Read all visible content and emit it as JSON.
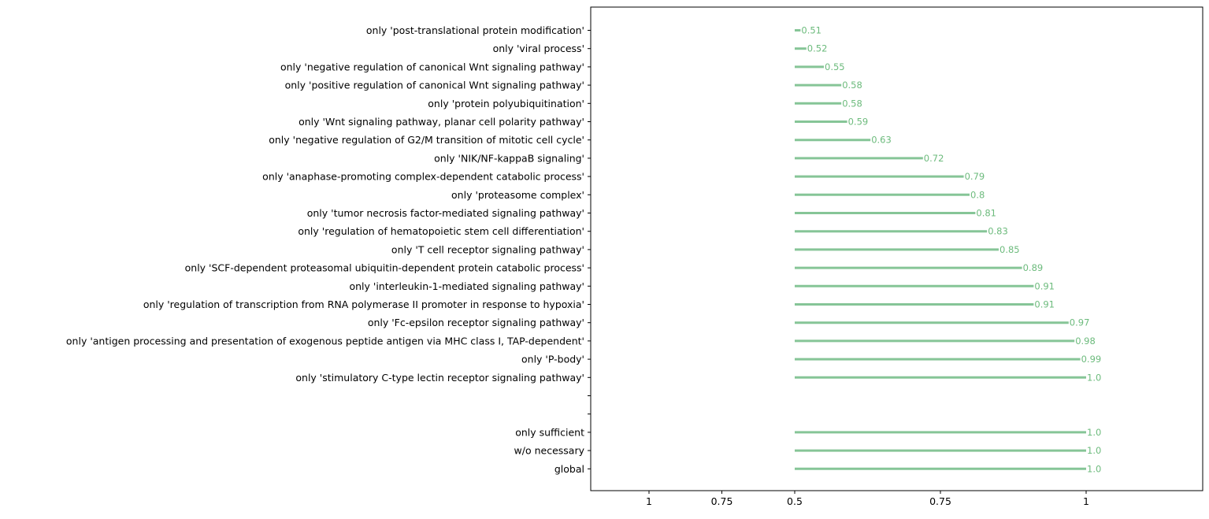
{
  "chart_data": {
    "type": "bar",
    "orientation": "horizontal",
    "series_color": "#86c597",
    "label_color": "#6dbb7d",
    "xlim": [
      0.15,
      1.2
    ],
    "x_tick_labels": [
      "1",
      "0.75",
      "0.5",
      "0.75",
      "1"
    ],
    "bar_start": 0.5,
    "grid": false,
    "categories": [
      "only 'post-translational protein modification'",
      "only 'viral process'",
      "only 'negative regulation of canonical Wnt signaling pathway'",
      "only 'positive regulation of canonical Wnt signaling pathway'",
      "only 'protein polyubiquitination'",
      "only 'Wnt signaling pathway, planar cell polarity pathway'",
      "only 'negative regulation of G2/M transition of mitotic cell cycle'",
      "only 'NIK/NF-kappaB signaling'",
      "only 'anaphase-promoting complex-dependent catabolic process'",
      "only 'proteasome complex'",
      "only 'tumor necrosis factor-mediated signaling pathway'",
      "only 'regulation of hematopoietic stem cell differentiation'",
      "only 'T cell receptor signaling pathway'",
      "only 'SCF-dependent proteasomal ubiquitin-dependent protein catabolic process'",
      "only 'interleukin-1-mediated signaling pathway'",
      "only 'regulation of transcription from RNA polymerase II promoter in response to hypoxia'",
      "only 'Fc-epsilon receptor signaling pathway'",
      "only 'antigen processing and presentation of exogenous peptide antigen via MHC class I, TAP-dependent'",
      "only 'P-body'",
      "only 'stimulatory C-type lectin receptor signaling pathway'",
      "",
      "",
      "only sufficient",
      "w/o necessary",
      "global"
    ],
    "values": [
      0.51,
      0.52,
      0.55,
      0.58,
      0.58,
      0.59,
      0.63,
      0.72,
      0.79,
      0.8,
      0.81,
      0.83,
      0.85,
      0.89,
      0.91,
      0.91,
      0.97,
      0.98,
      0.99,
      1.0,
      null,
      null,
      1.0,
      1.0,
      1.0
    ],
    "value_labels": [
      "0.51",
      "0.52",
      "0.55",
      "0.58",
      "0.58",
      "0.59",
      "0.63",
      "0.72",
      "0.79",
      "0.8",
      "0.81",
      "0.83",
      "0.85",
      "0.89",
      "0.91",
      "0.91",
      "0.97",
      "0.98",
      "0.99",
      "1.0",
      "",
      "",
      "1.0",
      "1.0",
      "1.0"
    ]
  }
}
